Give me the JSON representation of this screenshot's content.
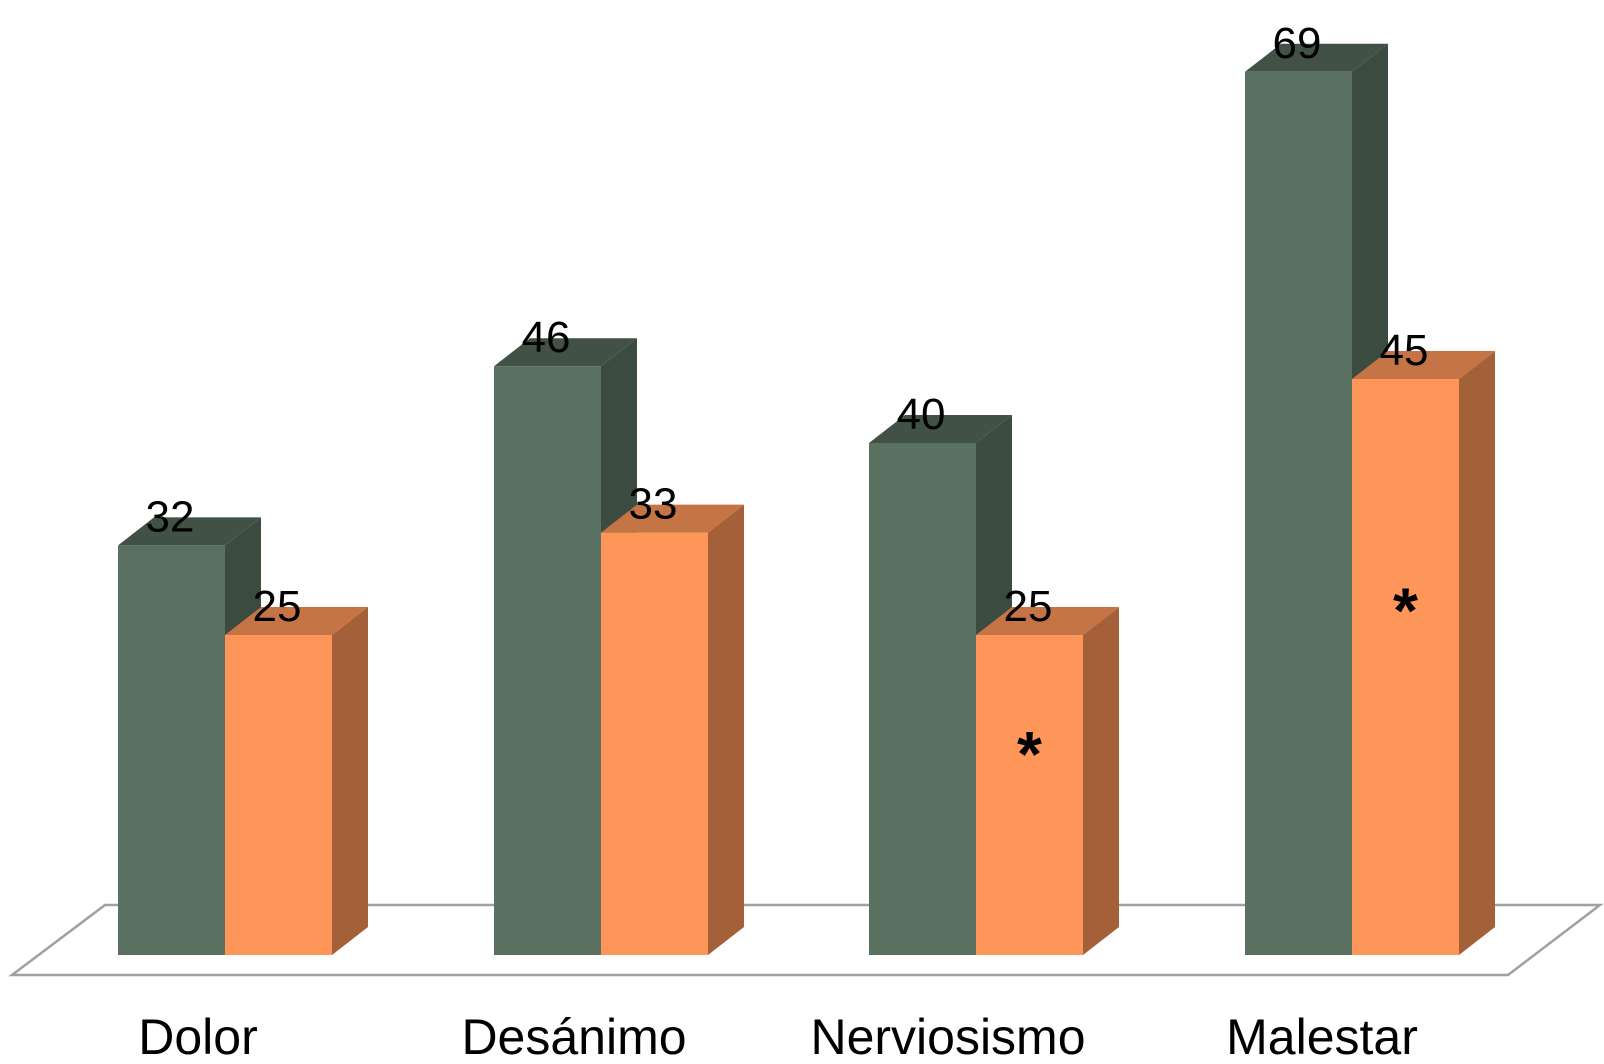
{
  "chart_data": {
    "type": "bar",
    "categories": [
      "Dolor",
      "Desánimo",
      "Nerviosismo",
      "Malestar"
    ],
    "series": [
      {
        "values": [
          32,
          46,
          40,
          69
        ],
        "color": "#5a7161"
      },
      {
        "values": [
          25,
          33,
          25,
          45
        ],
        "color": "#ff9659",
        "markers": [
          "",
          "",
          "*",
          "*"
        ]
      }
    ],
    "value_labels": [
      [
        "32",
        "46",
        "40",
        "69"
      ],
      [
        "25",
        "33",
        "25",
        "45"
      ]
    ],
    "ylim": [
      0,
      69
    ],
    "grid": false,
    "style": "3d"
  }
}
